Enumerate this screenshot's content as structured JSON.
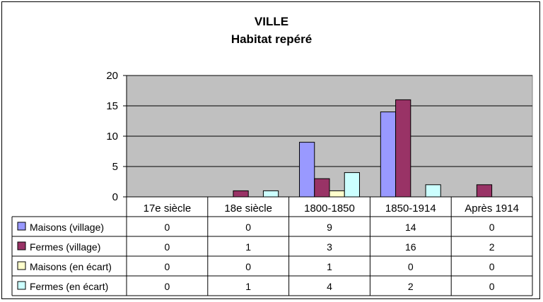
{
  "chart_data": {
    "type": "bar",
    "title": "VILLE",
    "subtitle": "Habitat repéré",
    "categories": [
      "17e siècle",
      "18e siècle",
      "1800-1850",
      "1850-1914",
      "Après 1914"
    ],
    "series": [
      {
        "name": "Maisons (village)",
        "color": "#9999ff",
        "values": [
          0,
          0,
          9,
          14,
          0
        ]
      },
      {
        "name": "Fermes (village)",
        "color": "#993366",
        "values": [
          0,
          1,
          3,
          16,
          2
        ]
      },
      {
        "name": "Maisons (en écart)",
        "color": "#ffffcc",
        "values": [
          0,
          0,
          1,
          0,
          0
        ]
      },
      {
        "name": "Fermes (en écart)",
        "color": "#ccffff",
        "values": [
          0,
          1,
          4,
          2,
          0
        ]
      }
    ],
    "yticks": [
      0,
      5,
      10,
      15,
      20
    ],
    "ylim": [
      0,
      20
    ],
    "grid": true,
    "plot_background": "#c0c0c0",
    "legend": "data table below chart"
  }
}
